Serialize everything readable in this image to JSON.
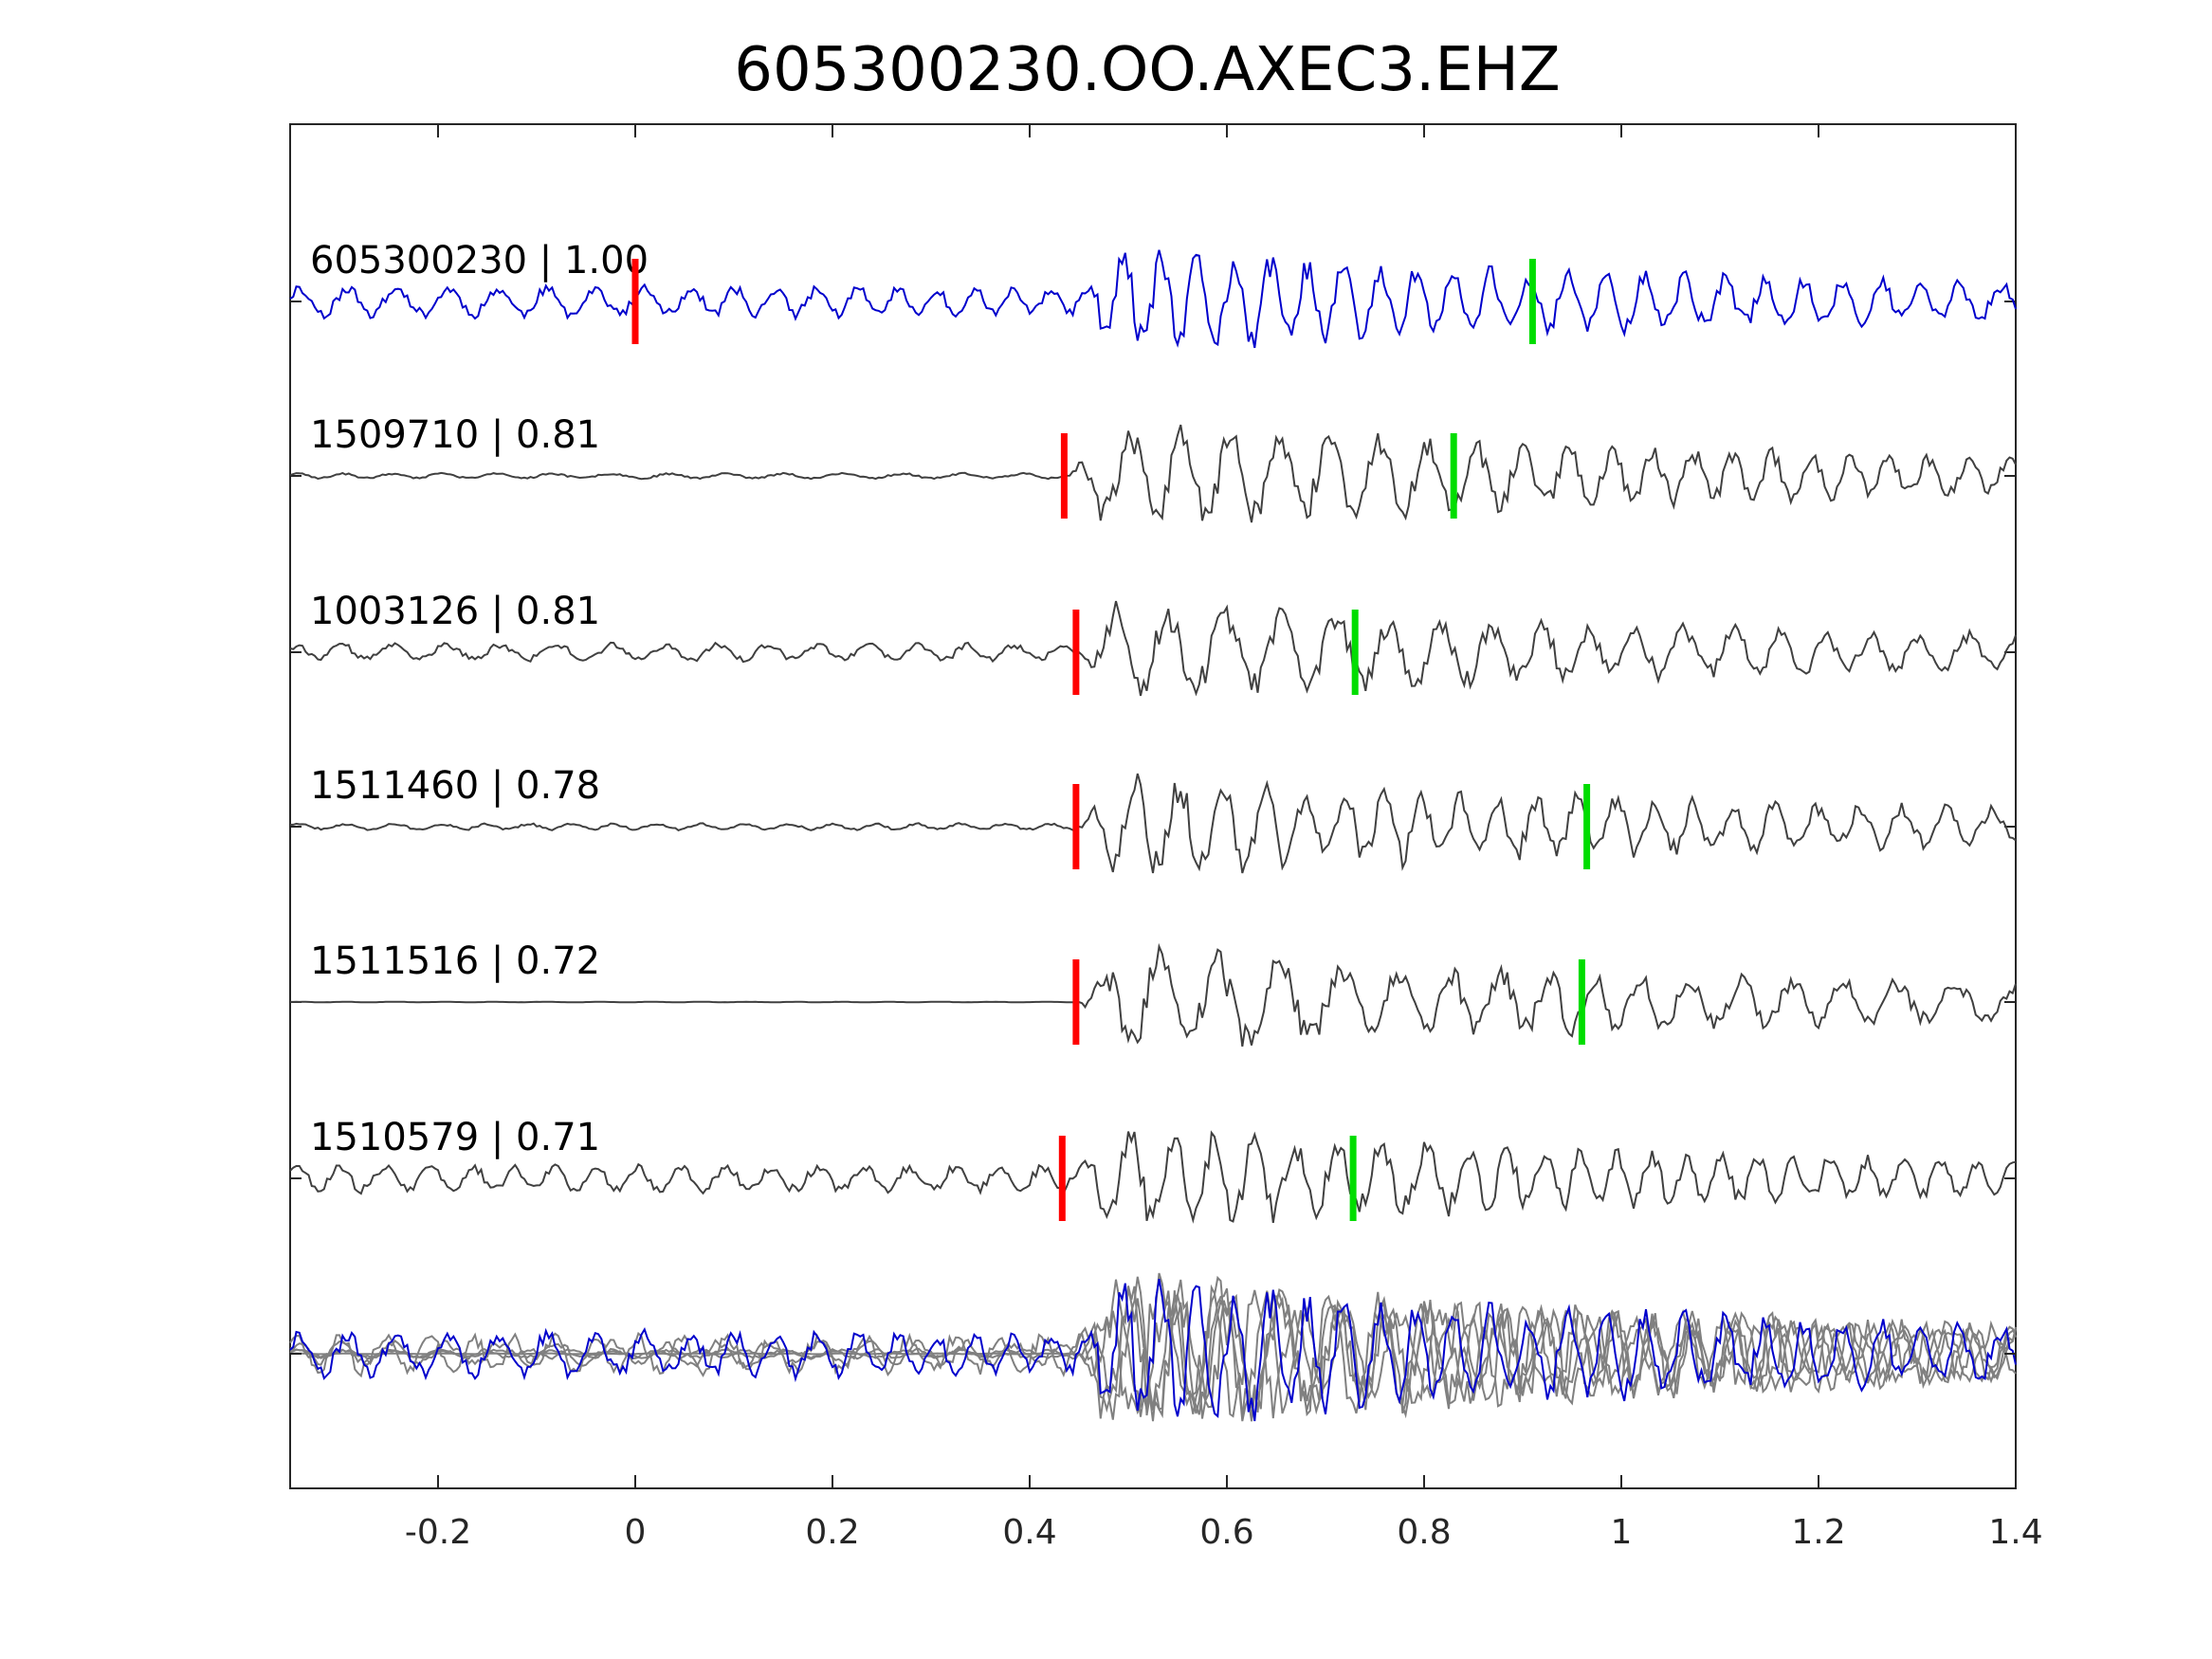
{
  "chart_data": {
    "type": "line",
    "title": "605300230.OO.AXEC3.EHZ",
    "xlabel": "",
    "ylabel": "",
    "xlim": [
      -0.35,
      1.4
    ],
    "xticks": [
      "-0.2",
      "0",
      "0.2",
      "0.4",
      "0.6",
      "0.8",
      "1",
      "1.2",
      "1.4"
    ],
    "xtick_values": [
      -0.2,
      0,
      0.2,
      0.4,
      0.6,
      0.8,
      1,
      1.2,
      1.4
    ],
    "colors": {
      "template": "#0000cc",
      "match": "#404040",
      "overlay": "#808080",
      "p_pick": "#ff0000",
      "s_pick": "#00dd00"
    },
    "series": [
      {
        "label": "605300230 | 1.00",
        "p_pick": 0.0,
        "s_pick": 0.91
      },
      {
        "label": "1509710 | 0.81",
        "p_pick": 0.435,
        "s_pick": 0.83
      },
      {
        "label": "1003126 | 0.81",
        "p_pick": 0.447,
        "s_pick": 0.73
      },
      {
        "label": "1511460 | 0.78",
        "p_pick": 0.447,
        "s_pick": 0.965
      },
      {
        "label": "1511516 | 0.72",
        "p_pick": 0.447,
        "s_pick": 0.96
      },
      {
        "label": "1510579 | 0.71",
        "p_pick": 0.433,
        "s_pick": 0.728
      }
    ]
  }
}
